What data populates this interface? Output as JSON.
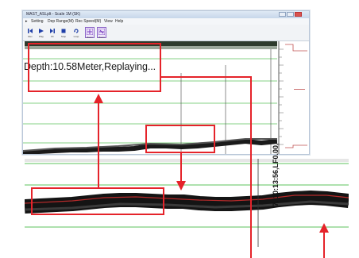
{
  "window": {
    "title": "MAST_ASLplt - Scale 1M (SK)",
    "menu": [
      "▸",
      "Setting",
      "Dep Range(M)",
      "Rec Speed(M)",
      "View",
      "Help"
    ]
  },
  "toolbar": {
    "buttons": [
      {
        "icon": "step-back-icon",
        "label": "Rev"
      },
      {
        "icon": "play-icon",
        "label": "Play"
      },
      {
        "icon": "fast-forward-icon",
        "label": "FF"
      },
      {
        "icon": "stop-icon",
        "label": "Stop"
      },
      {
        "icon": "loop-icon",
        "label": "Loop"
      },
      {
        "icon": "zoom-in-icon",
        "label": "Zoom"
      },
      {
        "icon": "zoom-out-icon",
        "label": "Zoom"
      }
    ]
  },
  "status": {
    "depth_text": "Depth:10.58Meter,Replaying..."
  },
  "zoom_panel": {
    "depth_label": "7. 10:13:56,LF0.00,"
  },
  "colors": {
    "annotation": "#e5232a",
    "grid_green": "#5cc35c",
    "signal": "#1a1a1a",
    "window_border": "#b9c7d8"
  }
}
